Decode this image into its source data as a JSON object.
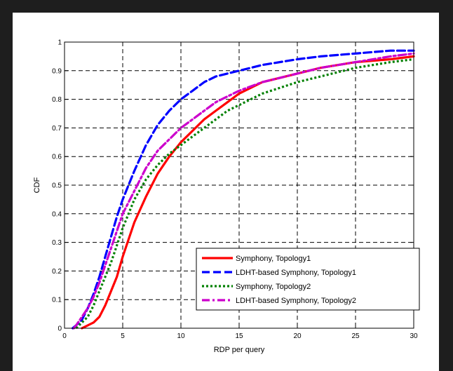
{
  "chart_data": {
    "type": "line",
    "title": "",
    "xlabel": "RDP per query",
    "ylabel": "CDF",
    "xlim": [
      0,
      30
    ],
    "ylim": [
      0,
      1
    ],
    "xticks": [
      0,
      5,
      10,
      15,
      20,
      25,
      30
    ],
    "yticks": [
      0,
      0.1,
      0.2,
      0.3,
      0.4,
      0.5,
      0.6,
      0.7,
      0.8,
      0.9,
      1
    ],
    "grid": true,
    "legend_position": "bottom-right",
    "series": [
      {
        "name": "Symphony, Topology1",
        "color": "#ff0000",
        "style": "solid",
        "x": [
          1.5,
          2,
          2.5,
          3,
          3.5,
          4,
          4.5,
          5,
          6,
          7,
          8,
          9,
          10,
          11,
          12,
          13,
          14,
          15,
          17,
          20,
          22,
          25,
          28,
          30
        ],
        "y": [
          0,
          0.01,
          0.02,
          0.04,
          0.08,
          0.13,
          0.18,
          0.25,
          0.37,
          0.46,
          0.54,
          0.6,
          0.65,
          0.69,
          0.73,
          0.76,
          0.79,
          0.82,
          0.86,
          0.89,
          0.91,
          0.93,
          0.94,
          0.95
        ]
      },
      {
        "name": "LDHT-based Symphony, Topology1",
        "color": "#0000ff",
        "style": "dashed",
        "x": [
          0.7,
          1,
          1.5,
          2,
          2.5,
          3,
          3.5,
          4,
          4.5,
          5,
          6,
          7,
          8,
          9,
          10,
          11,
          12,
          13,
          14,
          15,
          17,
          20,
          22,
          25,
          28,
          30
        ],
        "y": [
          0,
          0.01,
          0.03,
          0.07,
          0.12,
          0.18,
          0.25,
          0.32,
          0.39,
          0.45,
          0.55,
          0.64,
          0.71,
          0.76,
          0.8,
          0.83,
          0.86,
          0.88,
          0.89,
          0.9,
          0.92,
          0.94,
          0.95,
          0.96,
          0.97,
          0.97
        ]
      },
      {
        "name": "Symphony, Topology2",
        "color": "#008000",
        "style": "dotted",
        "x": [
          1,
          1.5,
          2,
          2.5,
          3,
          3.5,
          4,
          4.5,
          5,
          6,
          7,
          8,
          9,
          10,
          11,
          12,
          13,
          14,
          15,
          17,
          20,
          22,
          25,
          28,
          30
        ],
        "y": [
          0,
          0.02,
          0.04,
          0.08,
          0.13,
          0.18,
          0.23,
          0.29,
          0.35,
          0.45,
          0.52,
          0.57,
          0.61,
          0.64,
          0.67,
          0.7,
          0.73,
          0.76,
          0.78,
          0.82,
          0.86,
          0.88,
          0.91,
          0.93,
          0.94
        ]
      },
      {
        "name": "LDHT-based Symphony, Topology2",
        "color": "#cc00cc",
        "style": "dashdot",
        "x": [
          0.8,
          1,
          1.5,
          2,
          2.5,
          3,
          3.5,
          4,
          4.5,
          5,
          6,
          7,
          8,
          9,
          10,
          11,
          12,
          13,
          14,
          15,
          17,
          20,
          22,
          25,
          28,
          30
        ],
        "y": [
          0,
          0.01,
          0.04,
          0.07,
          0.11,
          0.16,
          0.22,
          0.28,
          0.34,
          0.4,
          0.48,
          0.56,
          0.62,
          0.66,
          0.7,
          0.73,
          0.76,
          0.79,
          0.81,
          0.83,
          0.86,
          0.89,
          0.91,
          0.93,
          0.95,
          0.96
        ]
      }
    ]
  }
}
